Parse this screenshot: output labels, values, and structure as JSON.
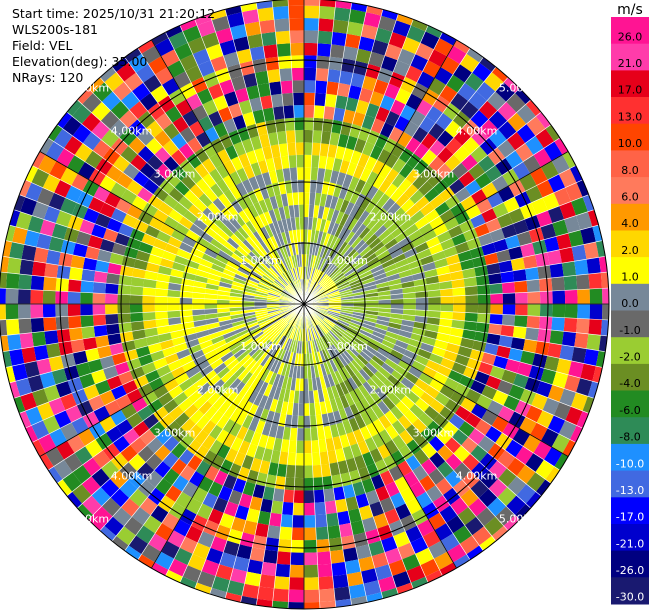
{
  "header": {
    "start_time": "Start time: 2025/10/31 21:20:12",
    "site": "WLS200s-181",
    "field": "Field: VEL",
    "elevation": "Elevation(deg): 35.00",
    "nrays": "NRays: 120"
  },
  "chart_data": {
    "type": "heatmap",
    "projection": "polar-ppi",
    "field": "VEL",
    "n_rays": 120,
    "range_rings_km": [
      1,
      2,
      3,
      4,
      5
    ],
    "range_ring_labels": [
      "1.00km",
      "2.00km",
      "3.00km",
      "4.00km",
      "5.00km"
    ],
    "max_range_km": 5.3,
    "spokes_deg": [
      0,
      30,
      60,
      90,
      120,
      150,
      180,
      210,
      240,
      270,
      300,
      330
    ],
    "colorbar": {
      "unit": "m/s",
      "ticks": [
        "26.0",
        "21.0",
        "17.0",
        "13.0",
        "10.0",
        "8.0",
        "6.0",
        "4.0",
        "2.0",
        "1.0",
        "0.0",
        "-1.0",
        "-2.0",
        "-4.0",
        "-6.0",
        "-8.0",
        "-10.0",
        "-13.0",
        "-17.0",
        "-21.0",
        "-26.0",
        "-30.0"
      ],
      "colors": [
        "#ff1493",
        "#ff3caa",
        "#e6001a",
        "#ff3030",
        "#ff4500",
        "#ff6347",
        "#ff7a5c",
        "#ff9900",
        "#ffd700",
        "#ffff00",
        "#778899",
        "#696969",
        "#9acd32",
        "#6b8e23",
        "#228b22",
        "#2e8b57",
        "#1e90ff",
        "#4169e1",
        "#0000ff",
        "#0000cd",
        "#000080",
        "#191970"
      ]
    }
  }
}
